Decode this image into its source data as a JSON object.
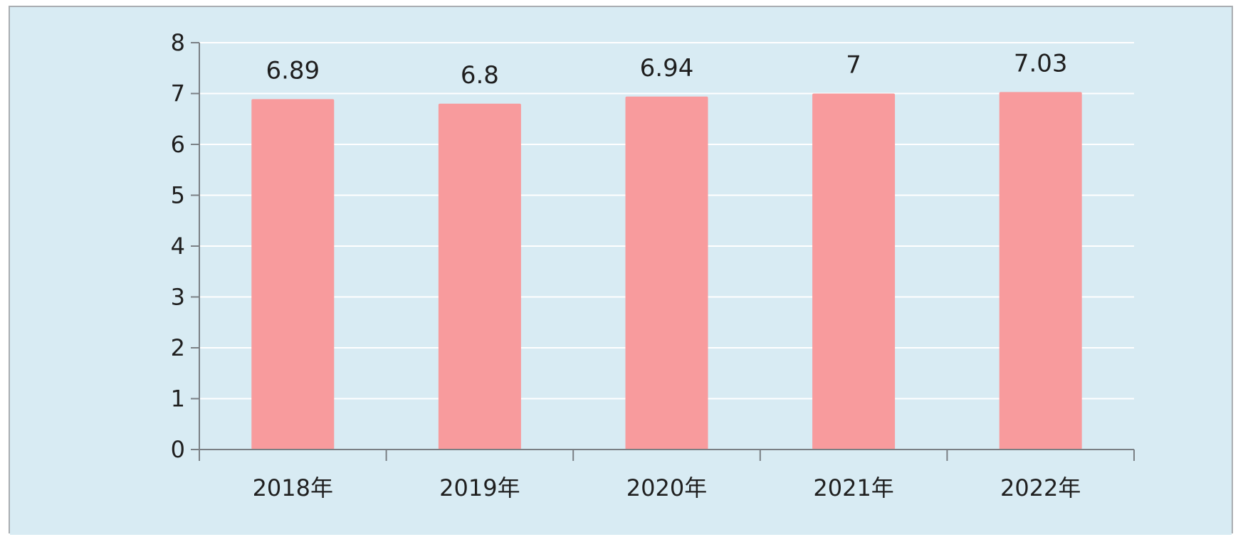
{
  "colors": {
    "panel_background": "#d8ebf3",
    "bar": "#f89b9d",
    "gridline": "#ffffff",
    "axis": "#7a7f84",
    "text": "#1f1f1f"
  },
  "chart_data": {
    "type": "bar",
    "title": "",
    "xlabel": "",
    "ylabel": "",
    "categories": [
      "2018年",
      "2019年",
      "2020年",
      "2021年",
      "2022年"
    ],
    "values": [
      6.89,
      6.8,
      6.94,
      7,
      7.03
    ],
    "data_labels": [
      "6.89",
      "6.8",
      "6.94",
      "7",
      "7.03"
    ],
    "ylim": [
      0,
      8
    ],
    "yticks": [
      0,
      1,
      2,
      3,
      4,
      5,
      6,
      7,
      8
    ],
    "grid": true,
    "legend": "none"
  }
}
